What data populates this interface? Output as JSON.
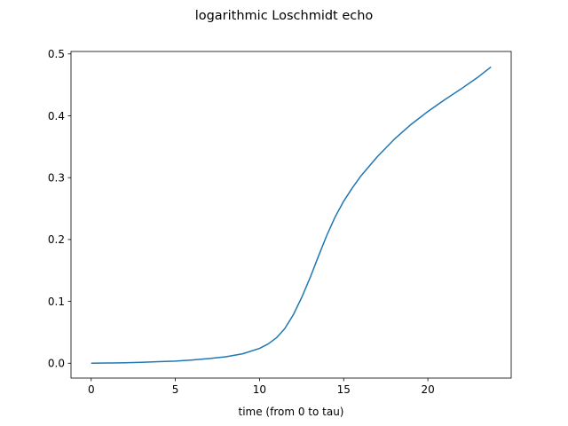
{
  "chart_data": {
    "type": "line",
    "title": "logarithmic Loschmidt echo",
    "xlabel": "time (from 0 to tau)",
    "ylabel": "",
    "xlim": [
      -1.2,
      24.95
    ],
    "ylim": [
      -0.024,
      0.504
    ],
    "x_ticks": [
      0,
      5,
      10,
      15,
      20
    ],
    "x_tick_labels": [
      "0",
      "5",
      "10",
      "15",
      "20"
    ],
    "y_ticks": [
      0.0,
      0.1,
      0.2,
      0.3,
      0.4,
      0.5
    ],
    "y_tick_labels": [
      "0.0",
      "0.1",
      "0.2",
      "0.3",
      "0.4",
      "0.5"
    ],
    "grid": false,
    "legend": "none",
    "series": [
      {
        "color": "#1f77b4",
        "x": [
          0,
          1,
          2,
          3,
          4,
          5,
          6,
          7,
          8,
          9,
          10,
          10.5,
          11,
          11.5,
          12,
          12.5,
          13,
          13.5,
          14,
          14.5,
          15,
          15.5,
          16,
          17,
          18,
          19,
          20,
          21,
          22,
          23,
          23.75
        ],
        "y": [
          0.0,
          0.0003,
          0.0008,
          0.0015,
          0.0025,
          0.0035,
          0.0052,
          0.0075,
          0.0105,
          0.0153,
          0.024,
          0.031,
          0.041,
          0.056,
          0.078,
          0.106,
          0.138,
          0.173,
          0.207,
          0.237,
          0.262,
          0.283,
          0.302,
          0.334,
          0.362,
          0.386,
          0.407,
          0.426,
          0.444,
          0.463,
          0.479
        ]
      }
    ]
  }
}
